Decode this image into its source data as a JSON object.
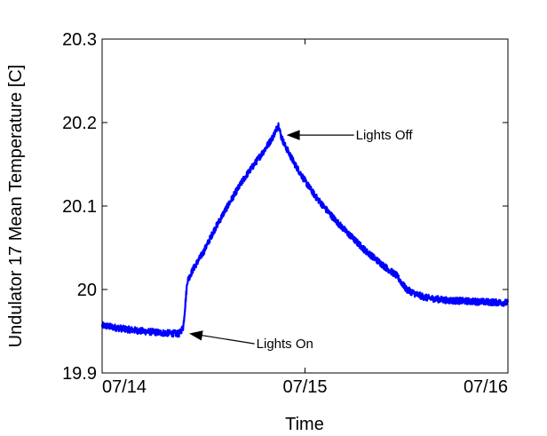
{
  "chart_data": {
    "type": "line",
    "xlabel": "Time",
    "ylabel": "Undulator 17 Mean Temperature [C]",
    "x_tick_labels": [
      "07/14",
      "07/15",
      "07/16"
    ],
    "x_tick_values": [
      0,
      1,
      2
    ],
    "xlim": [
      0,
      2
    ],
    "ylim": [
      19.9,
      20.3
    ],
    "y_ticks": [
      19.9,
      20,
      20.1,
      20.2,
      20.3
    ],
    "y_tick_labels": [
      "19.9",
      "20",
      "20.1",
      "20.2",
      "20.3"
    ],
    "grid": false,
    "legend": false,
    "series": [
      {
        "color": "#0000ff",
        "x": [
          0.0,
          0.1,
          0.2,
          0.3,
          0.38,
          0.4,
          0.42,
          0.45,
          0.5,
          0.55,
          0.6,
          0.65,
          0.7,
          0.75,
          0.8,
          0.84,
          0.87,
          0.88,
          0.9,
          0.95,
          1.0,
          1.05,
          1.1,
          1.15,
          1.2,
          1.25,
          1.3,
          1.35,
          1.4,
          1.45,
          1.5,
          1.55,
          1.6,
          1.7,
          1.8,
          1.9,
          2.0
        ],
        "y": [
          19.957,
          19.953,
          19.95,
          19.948,
          19.947,
          19.955,
          20.01,
          20.025,
          20.045,
          20.07,
          20.092,
          20.113,
          20.133,
          20.15,
          20.167,
          20.182,
          20.198,
          20.185,
          20.173,
          20.15,
          20.13,
          20.112,
          20.097,
          20.083,
          20.07,
          20.058,
          20.046,
          20.036,
          20.026,
          20.017,
          20.0,
          19.994,
          19.99,
          19.987,
          19.986,
          19.985,
          19.984
        ],
        "noise_amplitude": 0.008
      }
    ],
    "annotations": [
      {
        "text": "Lights On",
        "arrow_target": {
          "x": 0.4,
          "y": 19.947
        },
        "text_anchor": {
          "x": 0.76,
          "y": 19.935
        }
      },
      {
        "text": "Lights Off",
        "arrow_target": {
          "x": 0.88,
          "y": 20.185
        },
        "text_anchor": {
          "x": 1.25,
          "y": 20.185
        }
      }
    ]
  }
}
